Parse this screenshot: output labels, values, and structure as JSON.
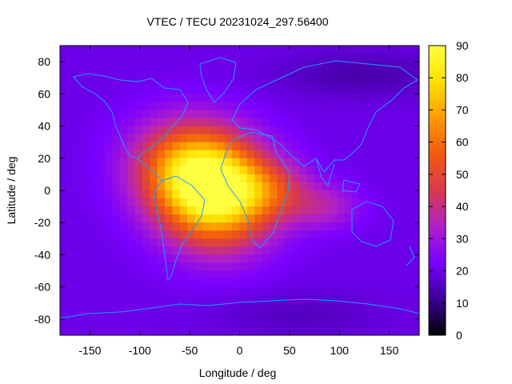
{
  "chart_data": {
    "type": "heatmap",
    "title": "VTEC / TECU 20231024_297.56400",
    "xlabel": "Longitude / deg",
    "ylabel": "Latitude / deg",
    "xlim": [
      -180,
      180
    ],
    "ylim": [
      -90,
      90
    ],
    "x_ticks": [
      -150,
      -100,
      -50,
      0,
      50,
      100,
      150
    ],
    "y_ticks": [
      -80,
      -60,
      -40,
      -20,
      0,
      20,
      40,
      60,
      80
    ],
    "colorbar": {
      "range": [
        0,
        90
      ],
      "ticks": [
        0,
        10,
        20,
        30,
        40,
        50,
        60,
        70,
        80,
        90
      ],
      "colors": [
        "#000000",
        "#3b0098",
        "#7a00ff",
        "#b020c8",
        "#d73a4e",
        "#f25a10",
        "#fb9a00",
        "#ffe000",
        "#ffff40"
      ]
    },
    "background_vtec": 20,
    "features": [
      {
        "name": "equatorial-anomaly-peak",
        "lon": -30,
        "lat": 5,
        "vtec": 88
      },
      {
        "name": "anomaly-crest-north",
        "lon": -55,
        "lat": 18,
        "vtec": 70
      },
      {
        "name": "anomaly-crest-south",
        "lon": -20,
        "lat": -15,
        "vtec": 72
      },
      {
        "name": "africa-tongue",
        "lon": 30,
        "lat": 0,
        "vtec": 55
      },
      {
        "name": "indian-ocean-extension",
        "lon": 85,
        "lat": -10,
        "vtec": 45
      },
      {
        "name": "northern-polar-low",
        "lon": 120,
        "lat": 72,
        "vtec": 8
      },
      {
        "name": "southern-polar-low",
        "lon": 60,
        "lat": -78,
        "vtec": 12
      }
    ]
  }
}
